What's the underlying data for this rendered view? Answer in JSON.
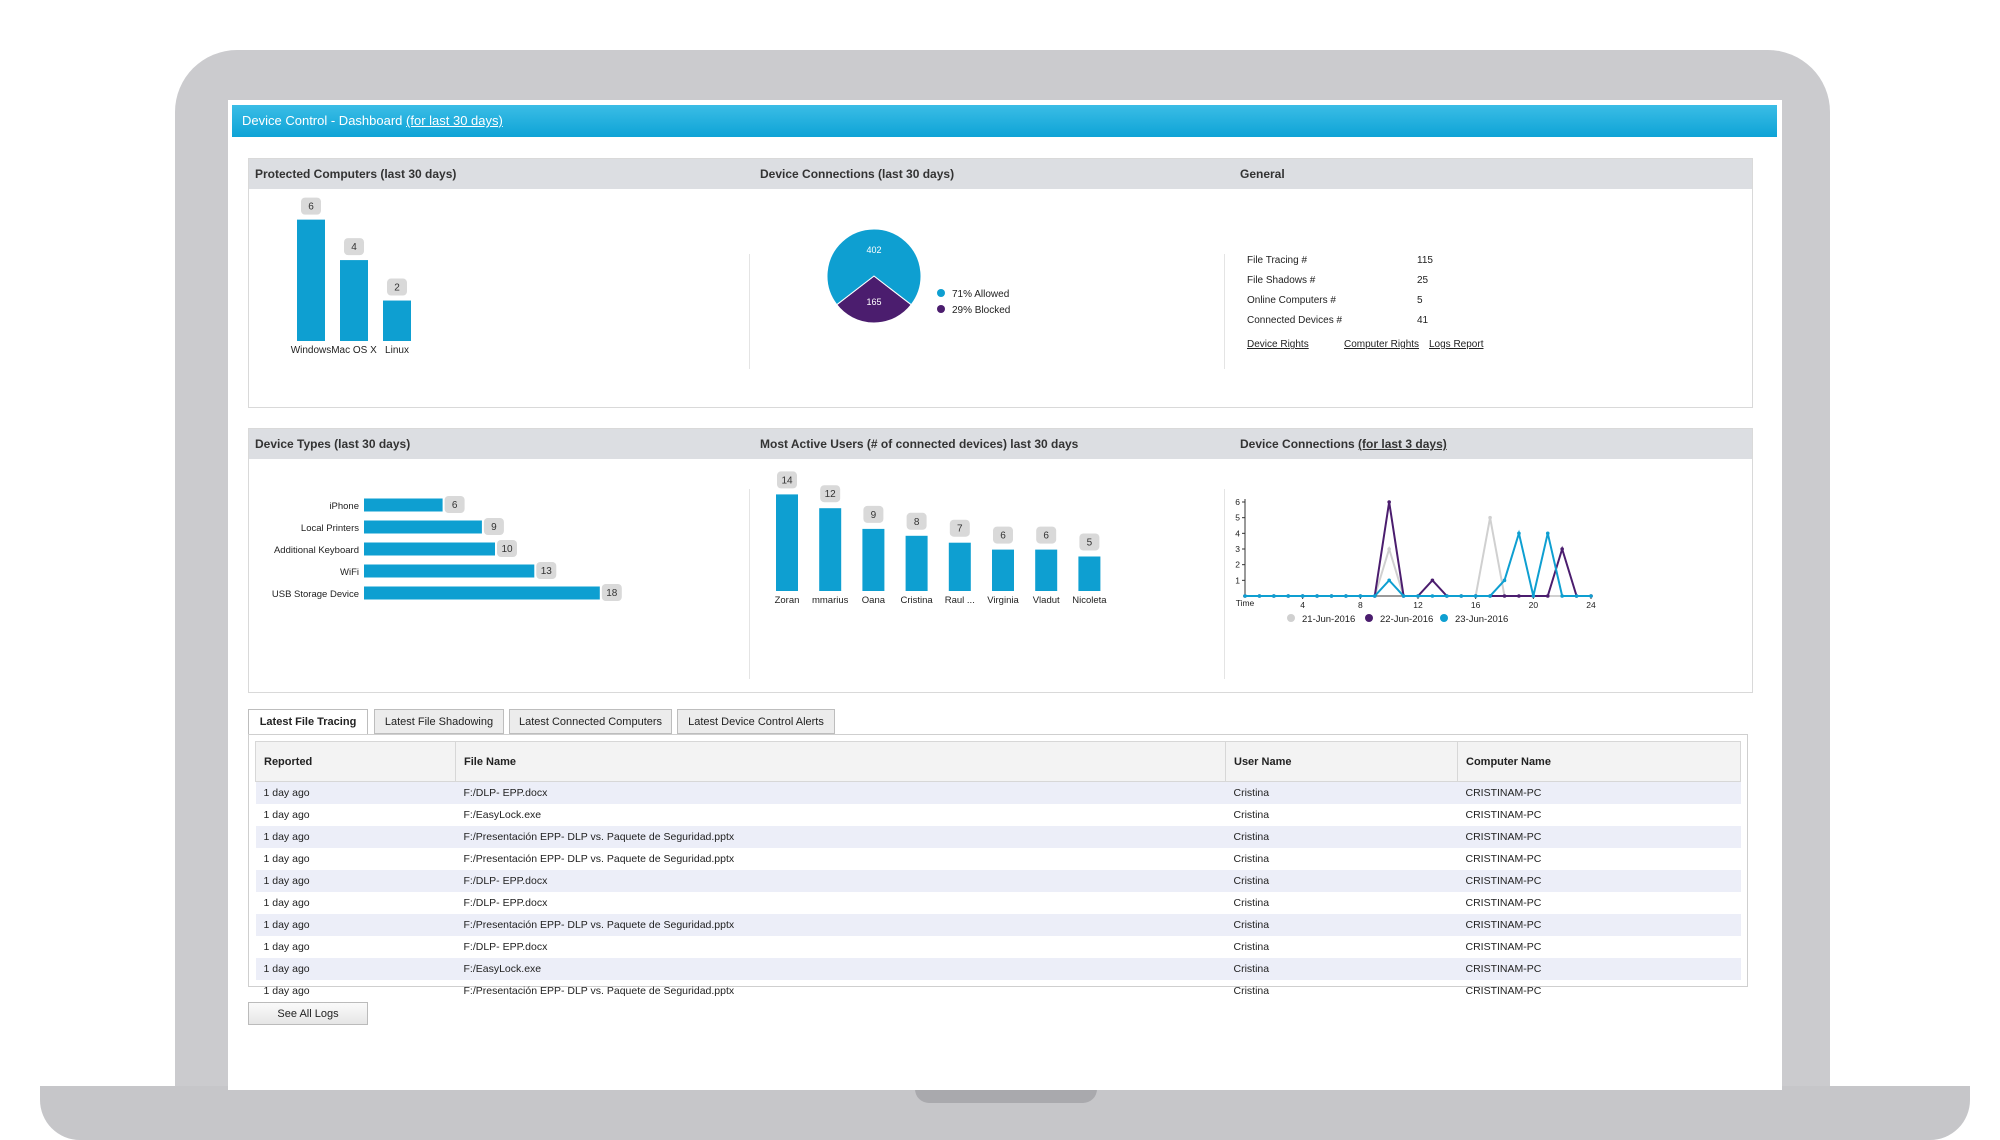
{
  "header": {
    "title": "Device Control - Dashboard",
    "period_link": "(for last 30 days)"
  },
  "panel1": {
    "protected_title": "Protected Computers (last 30 days)",
    "connections_title": "Device Connections (last 30 days)",
    "general_title": "General"
  },
  "panel2": {
    "types_title": "Device Types (last 30 days)",
    "users_title": "Most Active Users (# of connected devices) last 30 days",
    "conn3_title_prefix": "Device Connections",
    "conn3_link": "(for last 3 days)"
  },
  "general": {
    "rows": [
      {
        "label": "File Tracing #",
        "value": "115"
      },
      {
        "label": "File Shadows #",
        "value": "25"
      },
      {
        "label": "Online Computers #",
        "value": "5"
      },
      {
        "label": "Connected Devices #",
        "value": "41"
      }
    ],
    "links": [
      "Device Rights",
      "Computer Rights",
      "Logs Report"
    ]
  },
  "tabs": [
    "Latest File Tracing",
    "Latest File Shadowing",
    "Latest Connected Computers",
    "Latest Device Control Alerts"
  ],
  "table": {
    "columns": [
      "Reported",
      "File Name",
      "User Name",
      "Computer Name"
    ],
    "rows": [
      [
        "1 day ago",
        "F:/DLP- EPP.docx",
        "Cristina",
        "CRISTINAM-PC"
      ],
      [
        "1 day ago",
        "F:/EasyLock.exe",
        "Cristina",
        "CRISTINAM-PC"
      ],
      [
        "1 day ago",
        "F:/Presentación EPP- DLP vs. Paquete de Seguridad.pptx",
        "Cristina",
        "CRISTINAM-PC"
      ],
      [
        "1 day ago",
        "F:/Presentación EPP- DLP vs. Paquete de Seguridad.pptx",
        "Cristina",
        "CRISTINAM-PC"
      ],
      [
        "1 day ago",
        "F:/DLP- EPP.docx",
        "Cristina",
        "CRISTINAM-PC"
      ],
      [
        "1 day ago",
        "F:/DLP- EPP.docx",
        "Cristina",
        "CRISTINAM-PC"
      ],
      [
        "1 day ago",
        "F:/Presentación EPP- DLP vs. Paquete de Seguridad.pptx",
        "Cristina",
        "CRISTINAM-PC"
      ],
      [
        "1 day ago",
        "F:/DLP- EPP.docx",
        "Cristina",
        "CRISTINAM-PC"
      ],
      [
        "1 day ago",
        "F:/EasyLock.exe",
        "Cristina",
        "CRISTINAM-PC"
      ],
      [
        "1 day ago",
        "F:/Presentación EPP- DLP vs. Paquete de Seguridad.pptx",
        "Cristina",
        "CRISTINAM-PC"
      ]
    ]
  },
  "see_all": "See All Logs",
  "colors": {
    "bar": "#0e9fd1",
    "purple": "#4b1d6e",
    "grey": "#d0d0d0",
    "header": "#14a8db"
  },
  "chart_data": [
    {
      "type": "bar",
      "id": "protected",
      "categories": [
        "Windows",
        "Mac OS X",
        "Linux"
      ],
      "values": [
        6,
        4,
        2
      ]
    },
    {
      "type": "pie",
      "id": "connections",
      "slices": [
        {
          "label": "Allowed",
          "value": 402,
          "legend": "71% Allowed",
          "color": "#0e9fd1"
        },
        {
          "label": "Blocked",
          "value": 165,
          "legend": "29% Blocked",
          "color": "#4b1d6e"
        }
      ]
    },
    {
      "type": "bar",
      "id": "device_types",
      "orientation": "horizontal",
      "categories": [
        "iPhone",
        "Local Printers",
        "Additional Keyboard",
        "WiFi",
        "USB Storage Device"
      ],
      "values": [
        6,
        9,
        10,
        13,
        18
      ]
    },
    {
      "type": "bar",
      "id": "active_users",
      "categories": [
        "Zoran",
        "mmarius",
        "Oana",
        "Cristina",
        "Raul ...",
        "Virginia",
        "Vladut",
        "Nicoleta"
      ],
      "values": [
        14,
        12,
        9,
        8,
        7,
        6,
        6,
        5
      ]
    },
    {
      "type": "line",
      "id": "conn3",
      "xlabel": "Time",
      "xticks": [
        4,
        8,
        12,
        16,
        20,
        24
      ],
      "yticks": [
        1,
        2,
        3,
        4,
        5,
        6
      ],
      "xlim": [
        0,
        24
      ],
      "ylim": [
        0,
        6
      ],
      "series": [
        {
          "name": "21-Jun-2016",
          "color": "#d0d0d0",
          "x": [
            0,
            1,
            2,
            3,
            4,
            5,
            6,
            7,
            8,
            9,
            10,
            11,
            12,
            13,
            14,
            15,
            16,
            17,
            18,
            19,
            20,
            21,
            22,
            23,
            24
          ],
          "y": [
            0,
            0,
            0,
            0,
            0,
            0,
            0,
            0,
            0,
            0,
            3,
            0,
            0,
            0,
            0,
            0,
            0,
            5,
            0,
            0,
            0,
            0,
            0,
            0,
            0
          ]
        },
        {
          "name": "22-Jun-2016",
          "color": "#4b1d6e",
          "x": [
            0,
            1,
            2,
            3,
            4,
            5,
            6,
            7,
            8,
            9,
            10,
            11,
            12,
            13,
            14,
            15,
            16,
            17,
            18,
            19,
            20,
            21,
            22,
            23,
            24
          ],
          "y": [
            0,
            0,
            0,
            0,
            0,
            0,
            0,
            0,
            0,
            0,
            6,
            0,
            0,
            1,
            0,
            0,
            0,
            0,
            0,
            0,
            0,
            0,
            3,
            0,
            0
          ]
        },
        {
          "name": "23-Jun-2016",
          "color": "#0e9fd1",
          "x": [
            0,
            1,
            2,
            3,
            4,
            5,
            6,
            7,
            8,
            9,
            10,
            11,
            12,
            13,
            14,
            15,
            16,
            17,
            18,
            19,
            20,
            21,
            22,
            23,
            24
          ],
          "y": [
            0,
            0,
            0,
            0,
            0,
            0,
            0,
            0,
            0,
            0,
            1,
            0,
            0,
            0,
            0,
            0,
            0,
            0,
            1,
            4,
            0,
            4,
            0,
            0,
            0
          ]
        }
      ]
    }
  ]
}
